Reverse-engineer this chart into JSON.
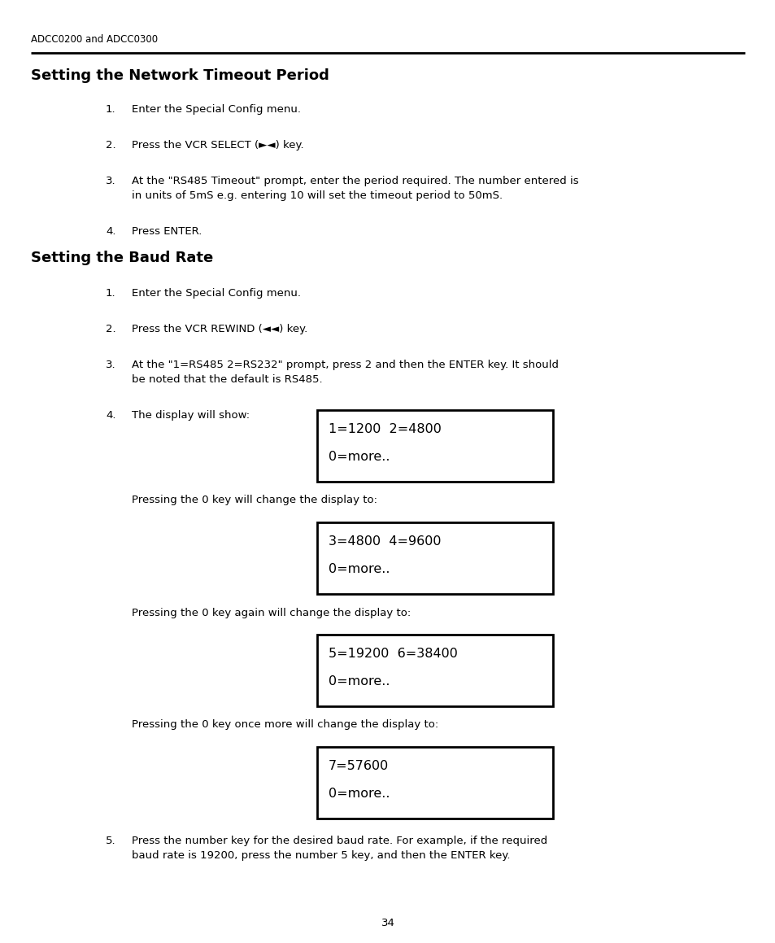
{
  "header": "ADCC0200 and ADCC0300",
  "section1_title": "Setting the Network Timeout Period",
  "section1_items": [
    "Enter the Special Config menu.",
    "Press the VCR SELECT (►◄) key.",
    "At the \"RS485 Timeout\" prompt, enter the period required. The number entered is\nin units of 5mS e.g. entering 10 will set the timeout period to 50mS.",
    "Press ENTER."
  ],
  "section2_title": "Setting the Baud Rate",
  "section2_items": [
    "Enter the Special Config menu.",
    "Press the VCR REWIND (◄◄) key.",
    "At the \"1=RS485 2=RS232\" prompt, press 2 and then the ENTER key. It should\nbe noted that the default is RS485.",
    "The display will show:"
  ],
  "display_box1_line1": "1=1200  2=4800",
  "display_box1_line2": "0=more..",
  "between_box1": "Pressing the 0 key will change the display to:",
  "display_box2_line1": "3=4800  4=9600",
  "display_box2_line2": "0=more..",
  "between_box2": "Pressing the 0 key again will change the display to:",
  "display_box3_line1": "5=19200  6=38400",
  "display_box3_line2": "0=more..",
  "between_box3": "Pressing the 0 key once more will change the display to:",
  "display_box4_line1": "7=57600",
  "display_box4_line2": "0=more..",
  "section2_item5_line1": "Press the number key for the desired baud rate. For example, if the required",
  "section2_item5_line2": "baud rate is 19200, press the number 5 key, and then the ENTER key.",
  "page_number": "34",
  "bg_color": "#ffffff",
  "text_color": "#000000"
}
